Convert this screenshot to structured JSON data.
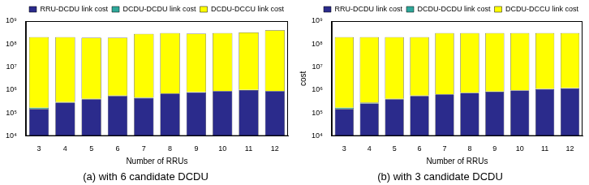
{
  "chart_data": [
    {
      "type": "bar",
      "title": "(a) with 6 candidate DCDU",
      "x_label": "Number of RRUs",
      "categories": [
        "3",
        "4",
        "5",
        "6",
        "7",
        "8",
        "9",
        "10",
        "11",
        "12"
      ],
      "stacked": true,
      "log": "y",
      "grid": false,
      "legend": "top right",
      "series": [
        {
          "name": "RRU-DCDU link cost",
          "color": "#2b2b8c",
          "values": [
            150000,
            280000,
            400000,
            550000,
            450000,
            700000,
            800000,
            900000,
            1000000,
            900000
          ]
        },
        {
          "name": "DCDU-DCDU link cost",
          "color": "#2fa89a",
          "values": [
            20000,
            20000,
            20000,
            20000,
            20000,
            20000,
            20000,
            20000,
            20000,
            20000
          ]
        },
        {
          "name": "DCDU-DCCU link cost",
          "color": "#ffff00",
          "values": [
            200000000,
            200000000,
            190000000,
            190000000,
            280000000,
            300000000,
            280000000,
            300000000,
            320000000,
            400000000
          ]
        }
      ],
      "ylim": [
        10000,
        1000000000
      ],
      "yticks": [
        {
          "value": 10000,
          "label": "10⁴"
        },
        {
          "value": 100000,
          "label": "10⁵"
        },
        {
          "value": 1000000,
          "label": "10⁶"
        },
        {
          "value": 10000000,
          "label": "10⁷"
        },
        {
          "value": 100000000,
          "label": "10⁸"
        },
        {
          "value": 1000000000,
          "label": "10⁹"
        }
      ]
    },
    {
      "type": "bar",
      "title": "(b) with 3 candidate DCDU",
      "x_label": "Number of RRUs",
      "y_label": "cost",
      "categories": [
        "3",
        "4",
        "5",
        "6",
        "7",
        "8",
        "9",
        "10",
        "11",
        "12"
      ],
      "stacked": true,
      "log": "y",
      "grid": false,
      "legend": "top right",
      "series": [
        {
          "name": "RRU-DCDU link cost",
          "color": "#2b2b8c",
          "values": [
            150000,
            260000,
            400000,
            550000,
            650000,
            750000,
            850000,
            950000,
            1100000,
            1200000
          ]
        },
        {
          "name": "DCDU-DCDU link cost",
          "color": "#2fa89a",
          "values": [
            20000,
            20000,
            20000,
            20000,
            20000,
            20000,
            20000,
            20000,
            20000,
            20000
          ]
        },
        {
          "name": "DCDU-DCCU link cost",
          "color": "#ffff00",
          "values": [
            200000000,
            200000000,
            200000000,
            200000000,
            300000000,
            300000000,
            300000000,
            300000000,
            300000000,
            300000000
          ]
        }
      ],
      "ylim": [
        10000,
        1000000000
      ],
      "yticks": [
        {
          "value": 10000,
          "label": "10⁴"
        },
        {
          "value": 100000,
          "label": "10⁵"
        },
        {
          "value": 1000000,
          "label": "10⁶"
        },
        {
          "value": 10000000,
          "label": "10⁷"
        },
        {
          "value": 100000000,
          "label": "10⁸"
        },
        {
          "value": 1000000000,
          "label": "10⁹"
        }
      ]
    }
  ]
}
